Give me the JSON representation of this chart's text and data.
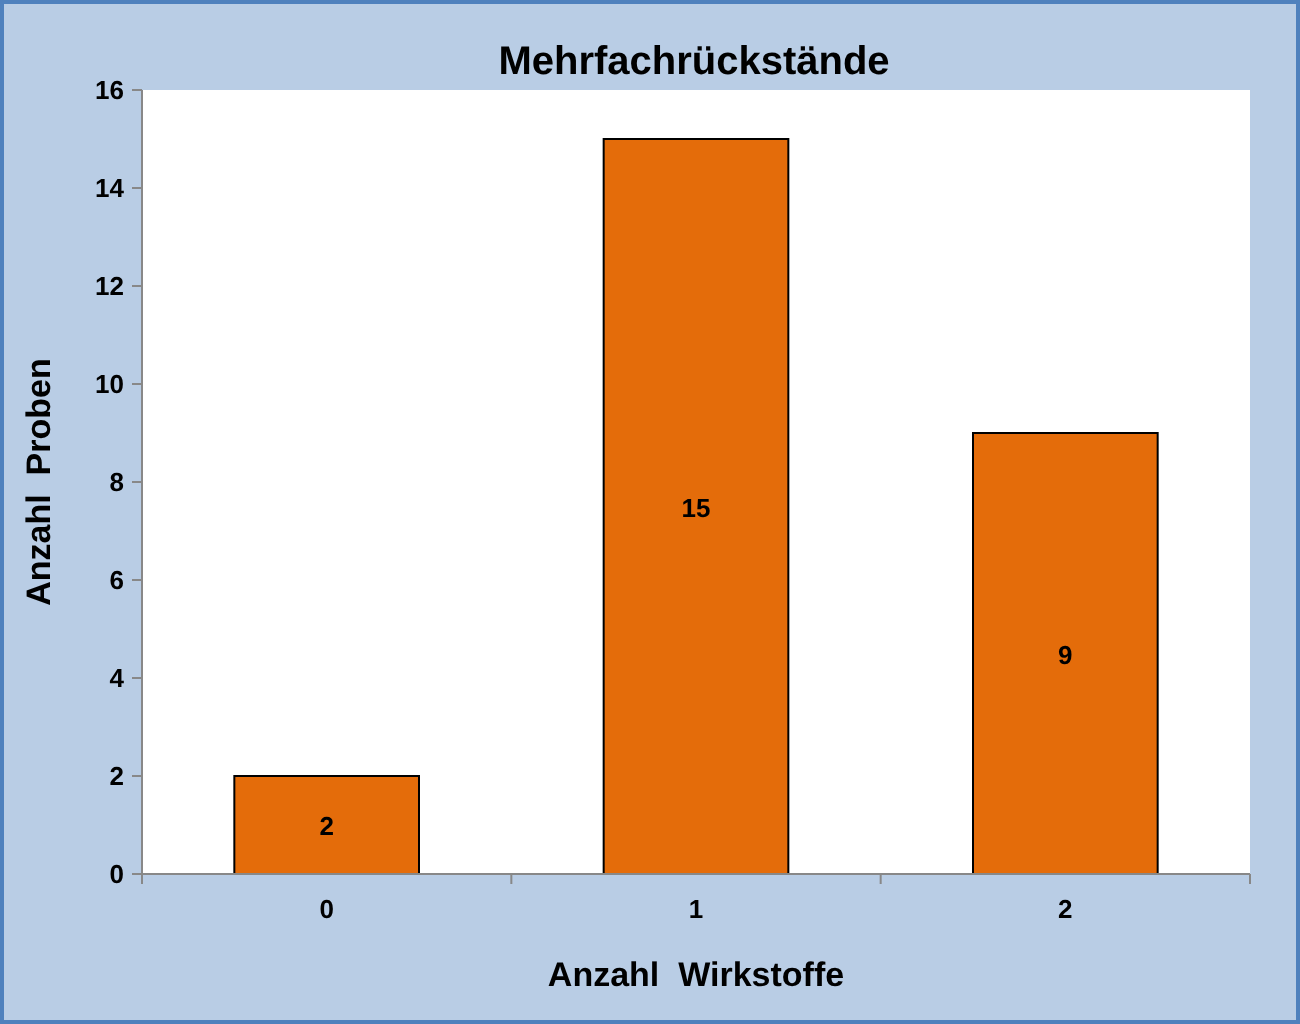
{
  "chart_data": {
    "type": "bar",
    "title": "Mehrfachrückstände",
    "xlabel": "Anzahl  Wirkstoffe",
    "ylabel": "Anzahl  Proben",
    "categories": [
      "0",
      "1",
      "2"
    ],
    "values": [
      2,
      15,
      9
    ],
    "color": "#e46c0a",
    "ylim": [
      0,
      16
    ],
    "yticks": [
      0,
      2,
      4,
      6,
      8,
      10,
      12,
      14,
      16
    ],
    "grid": false,
    "data_labels": true
  }
}
